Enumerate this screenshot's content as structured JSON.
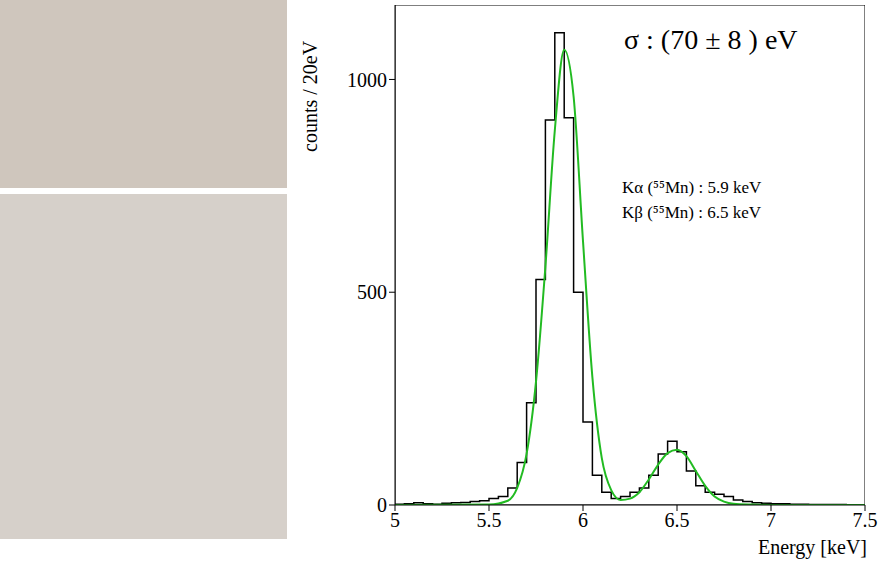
{
  "chart_data": {
    "type": "histogram",
    "bins": [
      5,
      5.05,
      5.1,
      5.15,
      5.2,
      5.25,
      5.3,
      5.35,
      5.4,
      5.45,
      5.5,
      5.55,
      5.6,
      5.65,
      5.7,
      5.75,
      5.8,
      5.85,
      5.9,
      5.95,
      6,
      6.05,
      6.1,
      6.15,
      6.2,
      6.25,
      6.3,
      6.35,
      6.4,
      6.45,
      6.5,
      6.55,
      6.6,
      6.65,
      6.7,
      6.75,
      6.8,
      6.85,
      6.9,
      6.95,
      7,
      7.05,
      7.1,
      7.15,
      7.2,
      7.25,
      7.3,
      7.35,
      7.4,
      7.45,
      7.5
    ],
    "values": [
      2,
      3,
      5,
      3,
      2,
      4,
      5,
      6,
      8,
      10,
      15,
      20,
      40,
      100,
      240,
      530,
      905,
      1110,
      910,
      500,
      195,
      70,
      30,
      15,
      20,
      30,
      40,
      70,
      120,
      150,
      125,
      80,
      45,
      30,
      25,
      20,
      12,
      8,
      5,
      4,
      3,
      3,
      2,
      2,
      1,
      1,
      1,
      1,
      0,
      0
    ],
    "color": "#000000",
    "fit": {
      "x": [
        5,
        5.5,
        5.6,
        5.65,
        5.7,
        5.75,
        5.8,
        5.85,
        5.9,
        5.95,
        6,
        6.05,
        6.1,
        6.15,
        6.2,
        6.25,
        6.3,
        6.35,
        6.4,
        6.45,
        6.5,
        6.55,
        6.6,
        6.65,
        6.7,
        6.75,
        6.8,
        6.9,
        7,
        7.5
      ],
      "y": [
        0,
        1,
        10,
        40,
        120,
        290,
        560,
        880,
        1070,
        960,
        620,
        300,
        110,
        35,
        12,
        15,
        30,
        60,
        95,
        122,
        130,
        115,
        80,
        45,
        20,
        8,
        3,
        1,
        0,
        0
      ],
      "color": "#22bb22"
    },
    "xlim": [
      5,
      7.5
    ],
    "xticks": [
      5,
      5.5,
      6,
      6.5,
      7,
      7.5
    ],
    "ylim": [
      0,
      1175
    ],
    "yticks": [
      0,
      500,
      1000
    ],
    "x_label": "Energy [keV]",
    "y_label": "counts / 20eV",
    "annotations": [
      "σ : (70 ± 8 ) eV",
      "Kα (⁵⁵Mn) : 5.9 keV",
      "Kβ (⁵⁵Mn) : 6.5 keV"
    ],
    "grid": false
  }
}
